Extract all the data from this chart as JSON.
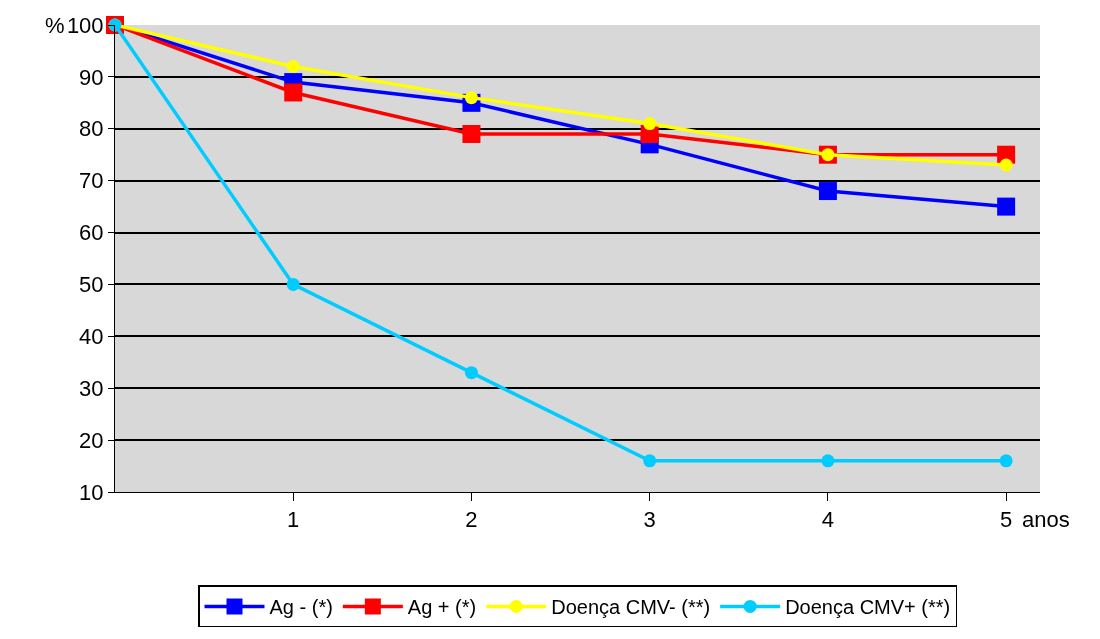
{
  "chart_data": {
    "type": "line",
    "categories": [
      null,
      "1",
      "2",
      "3",
      "4",
      "5"
    ],
    "xlabel": "anos",
    "ylabel": "%",
    "ylim": [
      10,
      100
    ],
    "yticks": [
      10,
      20,
      30,
      40,
      50,
      60,
      70,
      80,
      90,
      100
    ],
    "grid": "y",
    "legend": "bottom",
    "line_style": "solid",
    "series": [
      {
        "name": "Ag - (*)",
        "color": "#0000ff",
        "marker": "square",
        "values": [
          100,
          89,
          85,
          77,
          68,
          65
        ]
      },
      {
        "name": "Ag + (*)",
        "color": "#ff0000",
        "marker": "square",
        "values": [
          100,
          87,
          79,
          79,
          75,
          75
        ]
      },
      {
        "name": "Doença CMV- (**)",
        "color": "#ffff00",
        "marker": "circle",
        "values": [
          100,
          92,
          86,
          81,
          75,
          73
        ]
      },
      {
        "name": "Doença CMV+ (**)",
        "color": "#00ccff",
        "marker": "circle",
        "values": [
          100,
          50,
          33,
          16,
          16,
          16
        ]
      }
    ]
  }
}
